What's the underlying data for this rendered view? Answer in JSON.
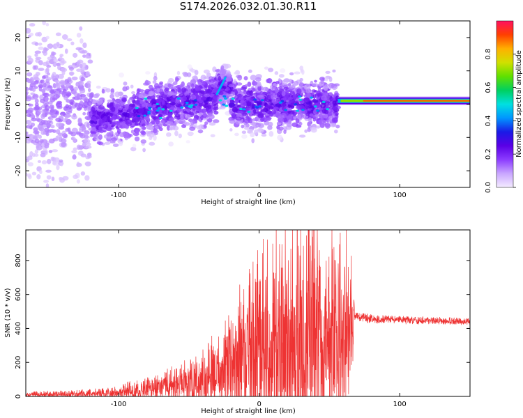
{
  "title": "S174.2026.032.01.30.R11",
  "chart_data": [
    {
      "type": "heatmap",
      "name": "spectrogram",
      "xlabel": "Height of straight line (km)",
      "ylabel": "Frequency (Hz)",
      "xlim": [
        -166,
        150
      ],
      "ylim": [
        -25,
        25
      ],
      "xticks": [
        -100,
        0,
        100
      ],
      "yticks": [
        20,
        10,
        0,
        -10,
        -20
      ],
      "colorbar": {
        "label": "Normalized spectral amplitude",
        "range": [
          0,
          1
        ],
        "ticks": [
          0.0,
          0.2,
          0.4,
          0.6,
          0.8
        ],
        "tick_labels": [
          "0.0",
          "0.2",
          "0.4",
          "0.6",
          "0.8"
        ],
        "colors": [
          "#f4ecff",
          "#c9a6ff",
          "#8c3cff",
          "#5a00e6",
          "#1a1ae6",
          "#0096ff",
          "#00e0e0",
          "#00d060",
          "#60e000",
          "#d0e000",
          "#ffb000",
          "#ff4000",
          "#ff1060"
        ]
      },
      "features": {
        "scatter_region_km": [
          -166,
          56
        ],
        "steady_line": {
          "x_start_km": 56,
          "x_end_km": 150,
          "freq_hz": 1,
          "amplitude": 0.9
        },
        "steep_streak": {
          "x_km": [
            -30,
            -24
          ],
          "freq_hz": [
            3,
            8
          ]
        }
      }
    },
    {
      "type": "line",
      "name": "snr",
      "xlabel": "Height of straight line (km)",
      "ylabel": "SNR (10 * v/v)",
      "xlim": [
        -166,
        150
      ],
      "ylim": [
        0,
        980
      ],
      "xticks": [
        -100,
        0,
        100
      ],
      "yticks": [
        0,
        200,
        400,
        600,
        800
      ],
      "color": "#ee3333",
      "x": [
        -166,
        -140,
        -120,
        -105,
        -95,
        -85,
        -75,
        -65,
        -55,
        -45,
        -35,
        -25,
        -15,
        -5,
        5,
        15,
        25,
        35,
        45,
        55,
        65,
        68,
        80,
        100,
        120,
        140,
        150
      ],
      "baseline": [
        10,
        12,
        15,
        18,
        25,
        35,
        45,
        60,
        70,
        80,
        100,
        140,
        200,
        240,
        260,
        280,
        300,
        320,
        330,
        340,
        350,
        470,
        455,
        450,
        445,
        440,
        440
      ],
      "envelope": [
        20,
        25,
        30,
        40,
        60,
        80,
        90,
        110,
        140,
        180,
        250,
        320,
        450,
        600,
        700,
        780,
        850,
        900,
        850,
        800,
        650,
        30,
        30,
        25,
        25,
        25,
        25
      ]
    }
  ]
}
